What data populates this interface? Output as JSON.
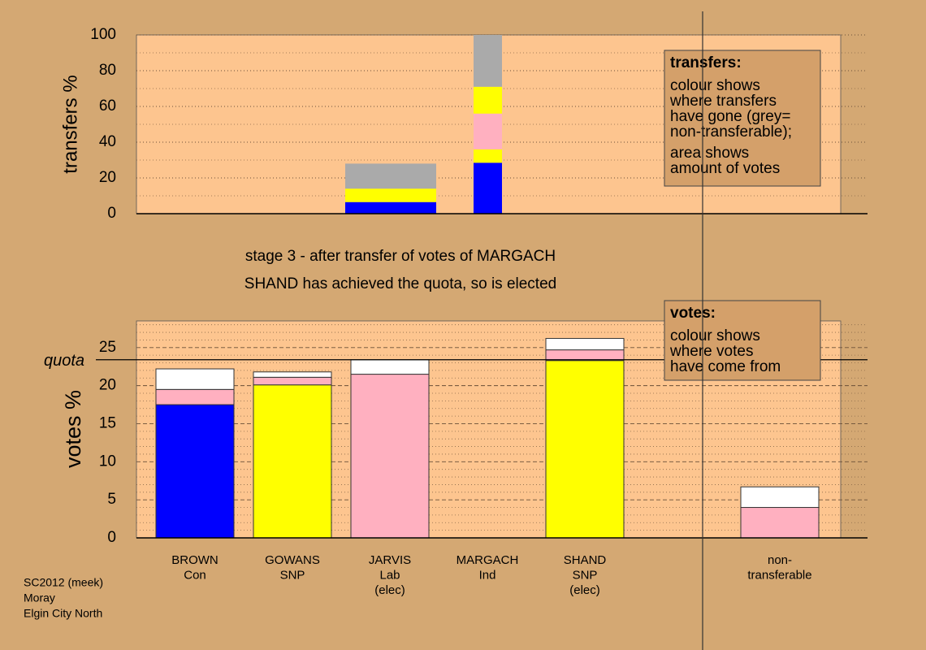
{
  "chart_data": [
    {
      "type": "bar",
      "stacked": true,
      "ylabel": "transfers %",
      "ylim": [
        0,
        100
      ],
      "yticks": [
        0,
        20,
        40,
        60,
        80,
        100
      ],
      "minor_yticks": [
        10,
        30,
        50,
        70,
        90
      ],
      "categories": [
        null,
        null
      ],
      "series": [
        {
          "color": "#0000ff",
          "values": [
            6.5,
            28.5
          ]
        },
        {
          "color": "#ffff00",
          "values": [
            7.5,
            7.5
          ]
        },
        {
          "color": "#ffb0c0",
          "values": [
            0,
            20
          ]
        },
        {
          "color": "#ffff00",
          "values": [
            0,
            15
          ]
        },
        {
          "color": "#aaaaaa",
          "values": [
            14,
            29
          ]
        }
      ],
      "note_title": "transfers:",
      "note_lines": [
        "colour shows",
        "where transfers",
        "have gone (grey=",
        "non-transferable);",
        "area shows",
        "amount of votes"
      ]
    },
    {
      "type": "bar",
      "stacked": true,
      "ylabel": "votes %",
      "title": [
        "stage 3 - after transfer of votes of MARGACH",
        "SHAND has achieved the quota, so is elected"
      ],
      "ylim": [
        0,
        28.5
      ],
      "yticks": [
        0,
        5,
        10,
        15,
        20,
        25
      ],
      "minor_yticks": [
        1,
        2,
        3,
        4,
        6,
        7,
        8,
        9,
        11,
        12,
        13,
        14,
        16,
        17,
        18,
        19,
        21,
        22,
        23,
        24,
        26,
        27,
        28
      ],
      "quota": {
        "value": 23.4,
        "label": "quota"
      },
      "categories": [
        [
          "BROWN",
          "Con"
        ],
        [
          "GOWANS",
          "SNP"
        ],
        [
          "JARVIS",
          "Lab",
          "(elec)"
        ],
        [
          "MARGACH",
          "Ind"
        ],
        [
          "SHAND",
          "SNP",
          "(elec)"
        ],
        null,
        [
          "non-",
          "transferable"
        ]
      ],
      "series": [
        {
          "color": "#0000ff",
          "values": [
            17.5,
            0,
            0,
            0,
            0,
            null,
            0
          ]
        },
        {
          "color": "#ffff00",
          "values": [
            0,
            20.1,
            0,
            0,
            23.3,
            null,
            0
          ]
        },
        {
          "color": "#ffb0c0",
          "values": [
            2,
            1,
            21.5,
            0,
            1.4,
            null,
            4
          ]
        },
        {
          "color": "#ffffff",
          "values": [
            2.7,
            0.7,
            1.9,
            0,
            1.5,
            null,
            2.7
          ]
        }
      ],
      "note_title": "votes:",
      "note_lines": [
        "colour shows",
        "where votes",
        "have come from"
      ]
    }
  ],
  "footer": [
    "SC2012 (meek)",
    "Moray",
    "Elgin City North"
  ]
}
